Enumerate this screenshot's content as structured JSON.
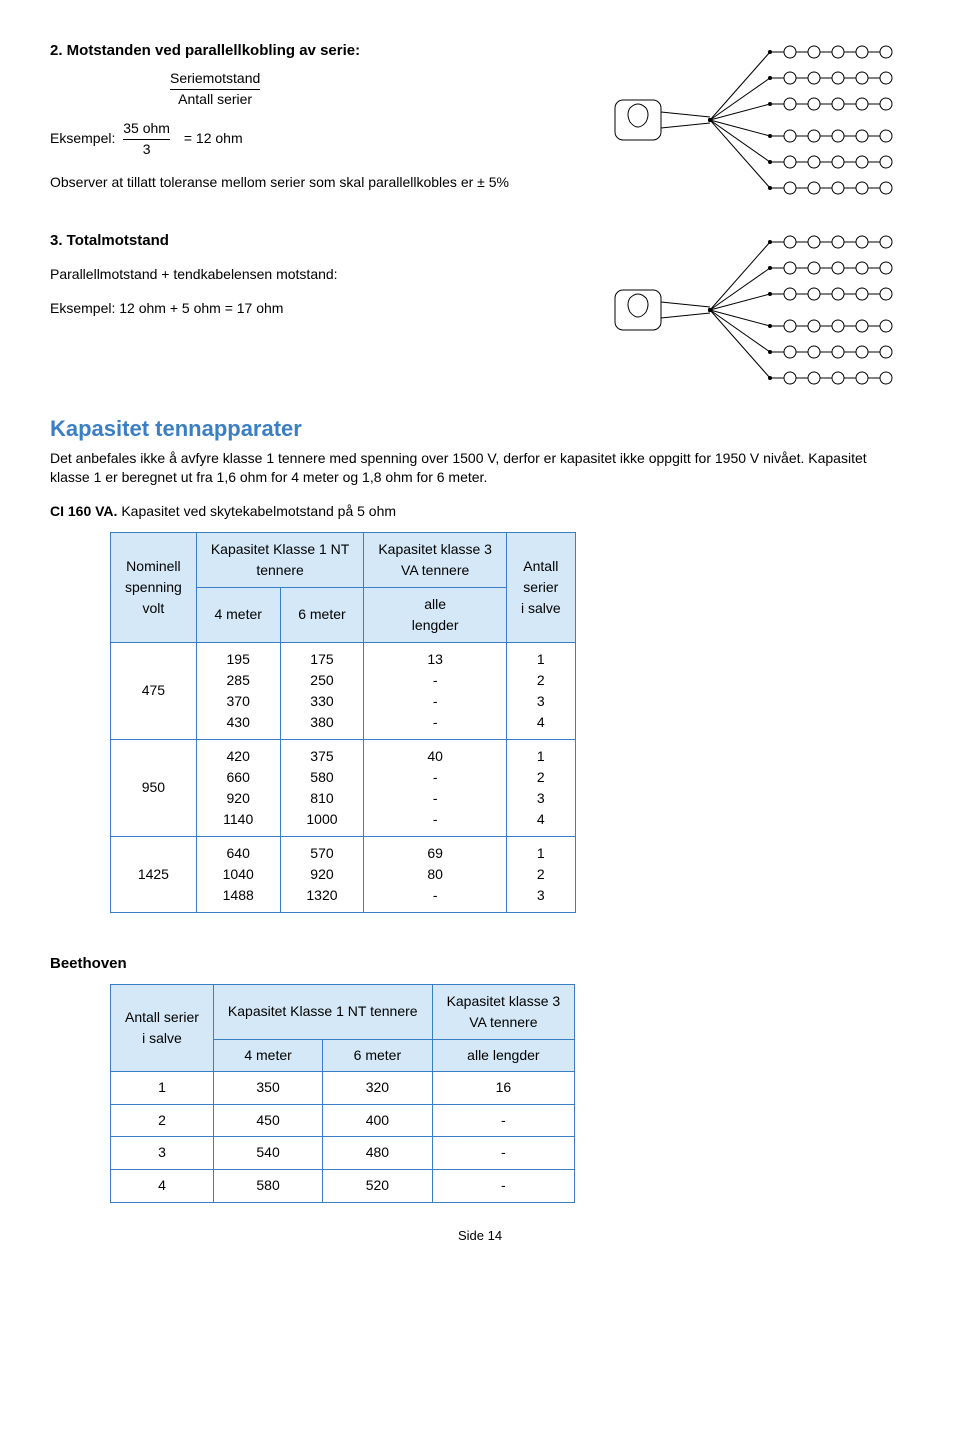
{
  "sec2": {
    "heading": "2. Motstanden ved parallellkobling av serie:",
    "frac_top": "Seriemotstand",
    "frac_bot": "Antall serier",
    "ex_label": "Eksempel:",
    "ex_top": "35 ohm",
    "ex_bot": "3",
    "ex_eq": "= 12 ohm",
    "observe": "Observer at tillatt toleranse mellom serier som skal parallellkobles er ± 5%"
  },
  "sec3": {
    "heading": "3. Totalmotstand",
    "line1": "Parallellmotstand + tendkabelensen motstand:",
    "line2": "Eksempel: 12 ohm + 5 ohm = 17 ohm"
  },
  "kap": {
    "heading": "Kapasitet tennapparater",
    "para": "Det anbefales ikke å avfyre klasse 1 tennere med spenning over 1500 V, derfor er kapasitet ikke oppgitt for 1950 V nivået. Kapasitet  klasse 1 er beregnet ut fra 1,6 ohm for 4 meter og 1,8 ohm for 6 meter.",
    "ci_prefix": "CI 160 VA.",
    "ci_rest": " Kapasitet ved skytekabelmotstand på 5 ohm"
  },
  "t1": {
    "h_nom": "Nominell\nspenning\nvolt",
    "h_k1": "Kapasitet Klasse 1 NT\ntennere",
    "h_k3": "Kapasitet klasse 3\nVA tennere",
    "h_ant": "Antall\nserier\ni salve",
    "h_4m": "4 meter",
    "h_6m": "6 meter",
    "h_alle": "alle\nlengder",
    "rows": [
      {
        "v": "475",
        "c4": "195\n285\n370\n430",
        "c6": "175\n250\n330\n380",
        "c3": "13\n-\n-\n-",
        "cs": "1\n2\n3\n4"
      },
      {
        "v": "950",
        "c4": "420\n660\n920\n1140",
        "c6": "375\n580\n810\n1000",
        "c3": "40\n-\n-\n-",
        "cs": "1\n2\n3\n4"
      },
      {
        "v": "1425",
        "c4": "640\n1040\n1488",
        "c6": "570\n920\n1320",
        "c3": "69\n80\n-",
        "cs": "1\n2\n3"
      }
    ]
  },
  "beethoven": {
    "heading": "Beethoven",
    "h_ant": "Antall serier\ni salve",
    "h_k1": "Kapasitet Klasse 1 NT tennere",
    "h_k3": "Kapasitet klasse 3\nVA tennere",
    "h_4m": "4 meter",
    "h_6m": "6 meter",
    "h_alle": "alle lengder",
    "rows": [
      {
        "a": "1",
        "c4": "350",
        "c6": "320",
        "c3": "16"
      },
      {
        "a": "2",
        "c4": "450",
        "c6": "400",
        "c3": "-"
      },
      {
        "a": "3",
        "c4": "540",
        "c6": "480",
        "c3": "-"
      },
      {
        "a": "4",
        "c4": "580",
        "c6": "520",
        "c3": "-"
      }
    ]
  },
  "footer": "Side 14",
  "colors": {
    "blue": "#3a7fc5",
    "lightblue": "#d4e8f7"
  }
}
